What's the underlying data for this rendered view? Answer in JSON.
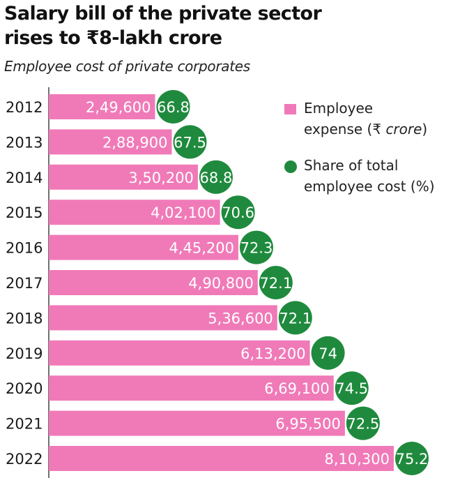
{
  "title_line1": "Salary bill of the private sector",
  "title_line2": "rises to ₹8-lakh crore",
  "subtitle": "Employee cost of private corporates",
  "legend": {
    "bar_line1": "Employee",
    "bar_line2_prefix": "expense (₹ ",
    "bar_line2_unit": "crore",
    "bar_line2_suffix": ")",
    "dot_line1": "Share of total",
    "dot_line2": "employee cost (%)"
  },
  "colors": {
    "bar": "#f07ab8",
    "dot": "#1f8a3d",
    "axis": "#444444"
  },
  "chart_data": {
    "type": "bar",
    "orientation": "horizontal",
    "categories": [
      "2012",
      "2013",
      "2014",
      "2015",
      "2016",
      "2017",
      "2018",
      "2019",
      "2020",
      "2021",
      "2022"
    ],
    "series": [
      {
        "name": "Employee expense (₹ crore)",
        "values": [
          249600,
          288900,
          350200,
          402100,
          445200,
          490800,
          536600,
          613200,
          669100,
          695500,
          810300
        ],
        "labels": [
          "2,49,600",
          "2,88,900",
          "3,50,200",
          "4,02,100",
          "4,45,200",
          "4,90,800",
          "5,36,600",
          "6,13,200",
          "6,69,100",
          "6,95,500",
          "8,10,300"
        ]
      },
      {
        "name": "Share of total employee cost (%)",
        "values": [
          66.8,
          67.5,
          68.8,
          70.6,
          72.3,
          72.1,
          72.1,
          74,
          74.5,
          72.5,
          75.2
        ],
        "labels": [
          "66.8",
          "67.5",
          "68.8",
          "70.6",
          "72.3",
          "72.1",
          "72.1",
          "74",
          "74.5",
          "72.5",
          "75.2"
        ]
      }
    ],
    "xlim": [
      0,
      810300
    ],
    "grid": false,
    "legend_position": "top-right"
  }
}
